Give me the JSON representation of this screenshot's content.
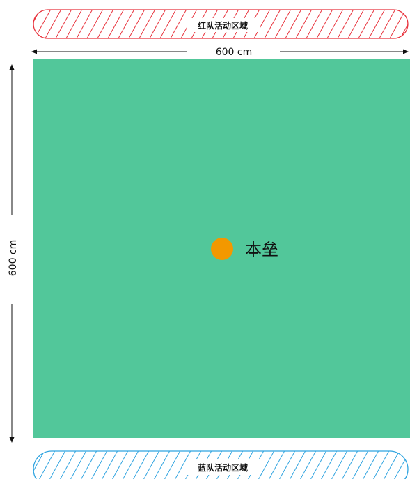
{
  "red_zone": {
    "label": "红队活动区域",
    "stroke_color": "#e8323c"
  },
  "blue_zone": {
    "label": "蓝队活动区域",
    "stroke_color": "#2fa4e0"
  },
  "dimensions": {
    "width_label": "600 cm",
    "height_label": "600 cm"
  },
  "field": {
    "color": "#52c79a"
  },
  "base": {
    "label": "本垒",
    "color": "#f39800"
  }
}
